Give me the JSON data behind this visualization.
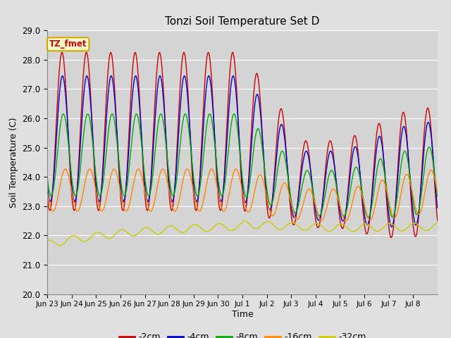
{
  "title": "Tonzi Soil Temperature Set D",
  "xlabel": "Time",
  "ylabel": "Soil Temperature (C)",
  "ylim": [
    20.0,
    29.0
  ],
  "yticks": [
    20.0,
    21.0,
    22.0,
    23.0,
    24.0,
    25.0,
    26.0,
    27.0,
    28.0,
    29.0
  ],
  "xtick_labels": [
    "Jun 23",
    "Jun 24",
    "Jun 25",
    "Jun 26",
    "Jun 27",
    "Jun 28",
    "Jun 29",
    "Jun 30",
    "Jul 1",
    "Jul 2",
    "Jul 3",
    "Jul 4",
    "Jul 5",
    "Jul 6",
    "Jul 7",
    "Jul 8"
  ],
  "legend_label": "TZ_fmet",
  "legend_box_facecolor": "#ffffcc",
  "legend_box_edgecolor": "#ccaa00",
  "series_labels": [
    "-2cm",
    "-4cm",
    "-8cm",
    "-16cm",
    "-32cm"
  ],
  "series_colors": [
    "#cc0000",
    "#0000cc",
    "#00aa00",
    "#ff8800",
    "#cccc00"
  ],
  "fig_facecolor": "#e0e0e0",
  "ax_facecolor": "#d4d4d4",
  "grid_color": "#ffffff",
  "n_points": 1000,
  "end_day": 16.0,
  "figsize": [
    6.4,
    4.8
  ],
  "dpi": 100
}
